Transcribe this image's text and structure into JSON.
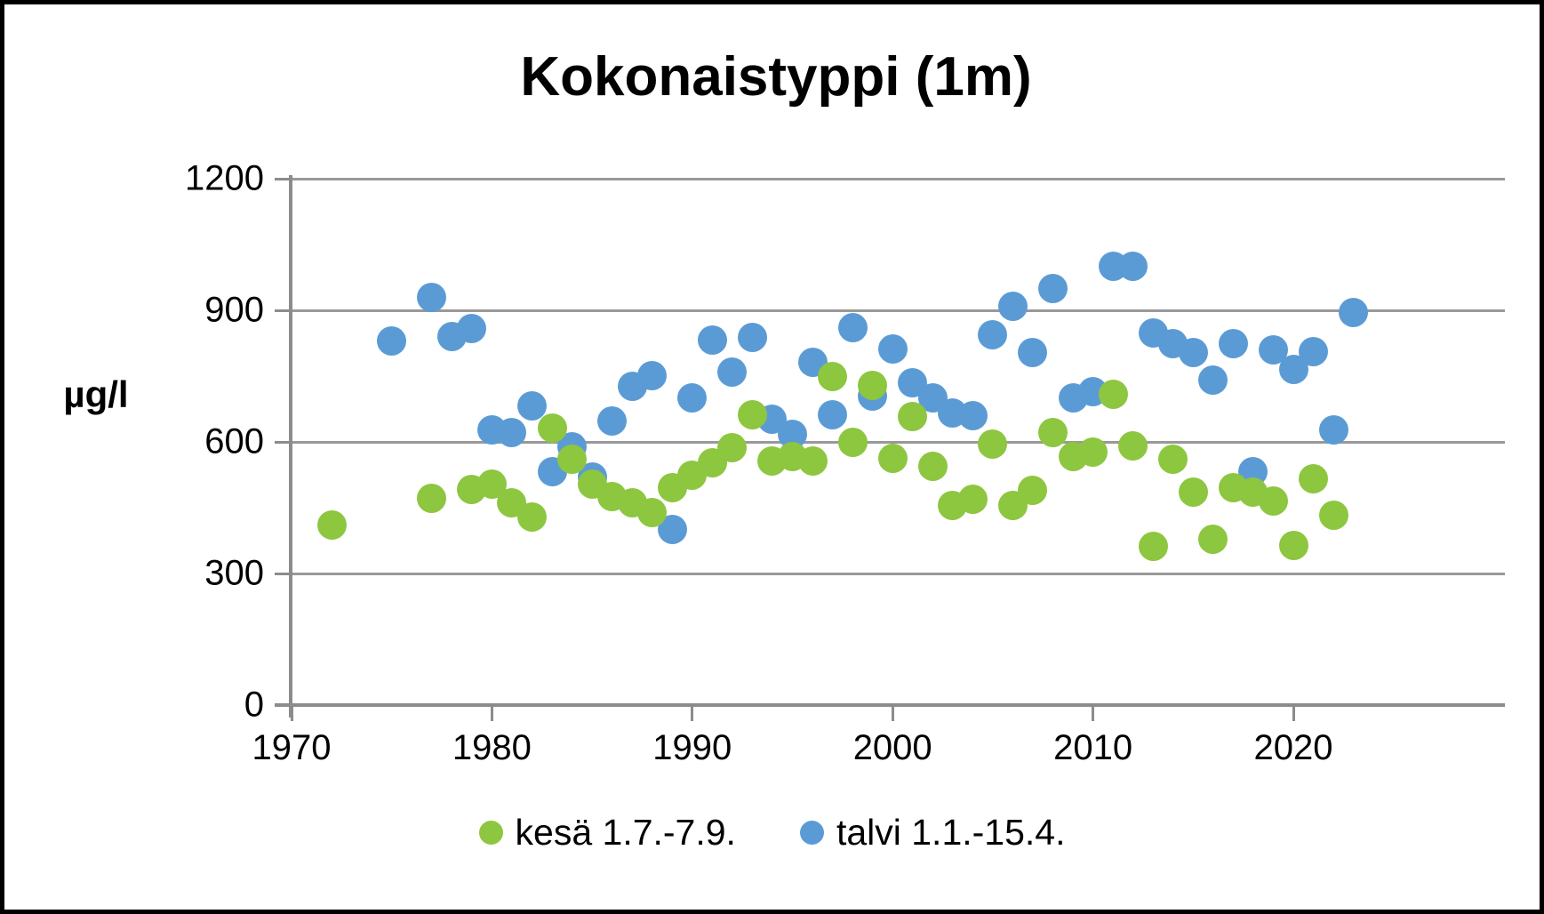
{
  "title": "Kokonaistyppi (1m)",
  "y_axis": {
    "unit_label": "µg/l",
    "ticks": [
      0,
      300,
      600,
      900,
      1200
    ],
    "min": 0,
    "max": 1200
  },
  "x_axis": {
    "ticks": [
      1970,
      1980,
      1990,
      2000,
      2010,
      2020
    ],
    "min": 1970,
    "max": 2030
  },
  "legend": {
    "items": [
      {
        "label": "kesä 1.7.-7.9.",
        "color": "#8DC63F"
      },
      {
        "label": "talvi 1.1.-15.4.",
        "color": "#5B9BD5"
      }
    ]
  },
  "colors": {
    "summer": "#8DC63F",
    "winter": "#5B9BD5",
    "grid": "#999999",
    "axis": "#8c8c8c"
  },
  "chart_data": {
    "type": "scatter",
    "title": "Kokonaistyppi (1m)",
    "xlabel": "",
    "ylabel": "µg/l",
    "xlim": [
      1970,
      2030
    ],
    "ylim": [
      0,
      1200
    ],
    "y_ticks": [
      0,
      300,
      600,
      900,
      1200
    ],
    "x_ticks": [
      1970,
      1980,
      1990,
      2000,
      2010,
      2020
    ],
    "grid": true,
    "legend_position": "bottom",
    "series": [
      {
        "name": "kesä 1.7.-7.9.",
        "color": "#8DC63F",
        "points": [
          [
            1972,
            410
          ],
          [
            1977,
            472
          ],
          [
            1979,
            492
          ],
          [
            1980,
            503
          ],
          [
            1981,
            462
          ],
          [
            1982,
            428
          ],
          [
            1983,
            631
          ],
          [
            1984,
            560
          ],
          [
            1985,
            503
          ],
          [
            1986,
            476
          ],
          [
            1987,
            462
          ],
          [
            1988,
            438
          ],
          [
            1989,
            496
          ],
          [
            1990,
            523
          ],
          [
            1991,
            553
          ],
          [
            1992,
            587
          ],
          [
            1993,
            661
          ],
          [
            1994,
            557
          ],
          [
            1995,
            567
          ],
          [
            1996,
            557
          ],
          [
            1997,
            748
          ],
          [
            1998,
            598
          ],
          [
            1999,
            729
          ],
          [
            2000,
            563
          ],
          [
            2001,
            658
          ],
          [
            2002,
            545
          ],
          [
            2003,
            455
          ],
          [
            2004,
            470
          ],
          [
            2005,
            595
          ],
          [
            2006,
            455
          ],
          [
            2007,
            489
          ],
          [
            2008,
            621
          ],
          [
            2009,
            567
          ],
          [
            2010,
            577
          ],
          [
            2011,
            709
          ],
          [
            2012,
            590
          ],
          [
            2013,
            361
          ],
          [
            2014,
            560
          ],
          [
            2015,
            486
          ],
          [
            2016,
            378
          ],
          [
            2017,
            496
          ],
          [
            2018,
            486
          ],
          [
            2019,
            466
          ],
          [
            2020,
            364
          ],
          [
            2021,
            516
          ],
          [
            2022,
            432
          ]
        ]
      },
      {
        "name": "talvi 1.1.-15.4.",
        "color": "#5B9BD5",
        "points": [
          [
            1975,
            830
          ],
          [
            1977,
            930
          ],
          [
            1978,
            840
          ],
          [
            1979,
            858
          ],
          [
            1980,
            628
          ],
          [
            1981,
            621
          ],
          [
            1982,
            682
          ],
          [
            1983,
            533
          ],
          [
            1984,
            588
          ],
          [
            1985,
            520
          ],
          [
            1986,
            648
          ],
          [
            1987,
            727
          ],
          [
            1988,
            752
          ],
          [
            1989,
            400
          ],
          [
            1990,
            700
          ],
          [
            1991,
            833
          ],
          [
            1992,
            760
          ],
          [
            1993,
            838
          ],
          [
            1994,
            652
          ],
          [
            1995,
            617
          ],
          [
            1996,
            781
          ],
          [
            1997,
            662
          ],
          [
            1998,
            861
          ],
          [
            1999,
            705
          ],
          [
            2000,
            812
          ],
          [
            2001,
            735
          ],
          [
            2002,
            700
          ],
          [
            2003,
            665
          ],
          [
            2004,
            660
          ],
          [
            2005,
            845
          ],
          [
            2006,
            910
          ],
          [
            2007,
            803
          ],
          [
            2008,
            950
          ],
          [
            2009,
            700
          ],
          [
            2010,
            715
          ],
          [
            2011,
            1000
          ],
          [
            2012,
            1000
          ],
          [
            2013,
            848
          ],
          [
            2014,
            825
          ],
          [
            2015,
            803
          ],
          [
            2016,
            740
          ],
          [
            2017,
            825
          ],
          [
            2018,
            533
          ],
          [
            2019,
            810
          ],
          [
            2020,
            765
          ],
          [
            2021,
            805
          ],
          [
            2022,
            628
          ],
          [
            2023,
            895
          ]
        ]
      }
    ]
  }
}
